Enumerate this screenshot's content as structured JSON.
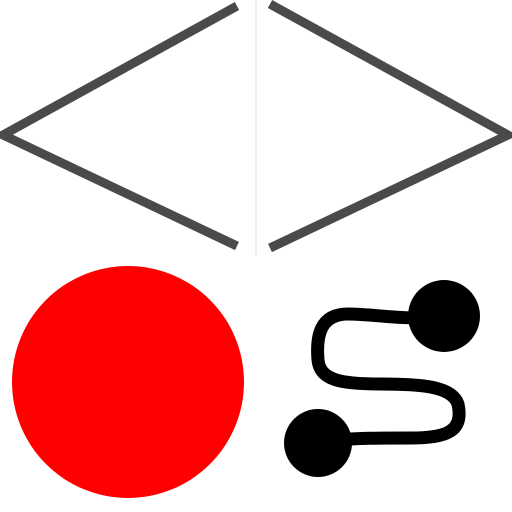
{
  "icons": {
    "top": "diamond-outline-icon",
    "bottom_left": "record-icon",
    "bottom_right": "path-route-icon"
  },
  "colors": {
    "background": "#ffffff",
    "diamond_stroke": "#4a4a4a",
    "divider": "#dcdcdc",
    "record_fill": "#ff0000",
    "route": "#000000"
  }
}
